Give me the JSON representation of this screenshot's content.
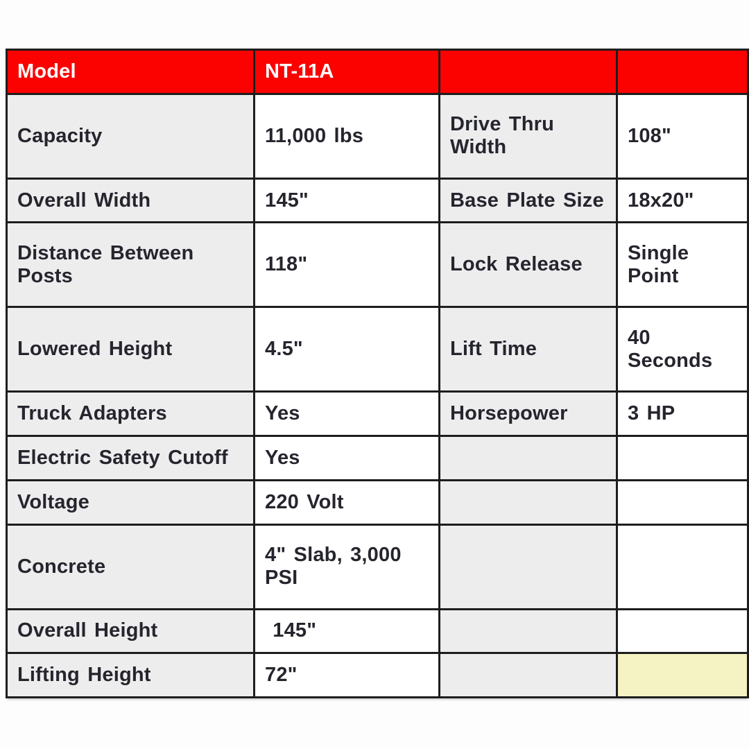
{
  "colors": {
    "header_bg": "#fb0200",
    "header_text": "#ffffff",
    "label_bg": "#ededed",
    "value_bg": "#ffffff",
    "highlight_bg": "#f5f2c4",
    "border": "#1d1d1d",
    "text": "#25252e",
    "page_bg": "#fdfdfd"
  },
  "chart_data": {
    "type": "table",
    "title": "Lift specifications table",
    "header": [
      "Model",
      "NT-11A",
      "",
      ""
    ],
    "columns": [
      "spec-name-left",
      "spec-value-left",
      "spec-name-right",
      "spec-value-right"
    ],
    "rows": [
      [
        "Capacity",
        "11,000 lbs",
        "Drive Thru Width",
        "108\""
      ],
      [
        "Overall Width",
        "145\"",
        "Base Plate Size",
        "18x20\""
      ],
      [
        "Distance Between Posts",
        "118\"",
        "Lock Release",
        "Single Point"
      ],
      [
        "Lowered Height",
        "4.5\"",
        "Lift Time",
        "40 Seconds"
      ],
      [
        "Truck Adapters",
        "Yes",
        "Horsepower",
        "3 HP"
      ],
      [
        "Electric Safety Cutoff",
        "Yes",
        "",
        ""
      ],
      [
        "Voltage",
        "220 Volt",
        "",
        ""
      ],
      [
        "Concrete",
        "4\" Slab, 3,000 PSI",
        "",
        ""
      ],
      [
        "Overall Height",
        " 145\"",
        "",
        ""
      ],
      [
        "Lifting Height",
        "72\"",
        "",
        ""
      ]
    ]
  }
}
